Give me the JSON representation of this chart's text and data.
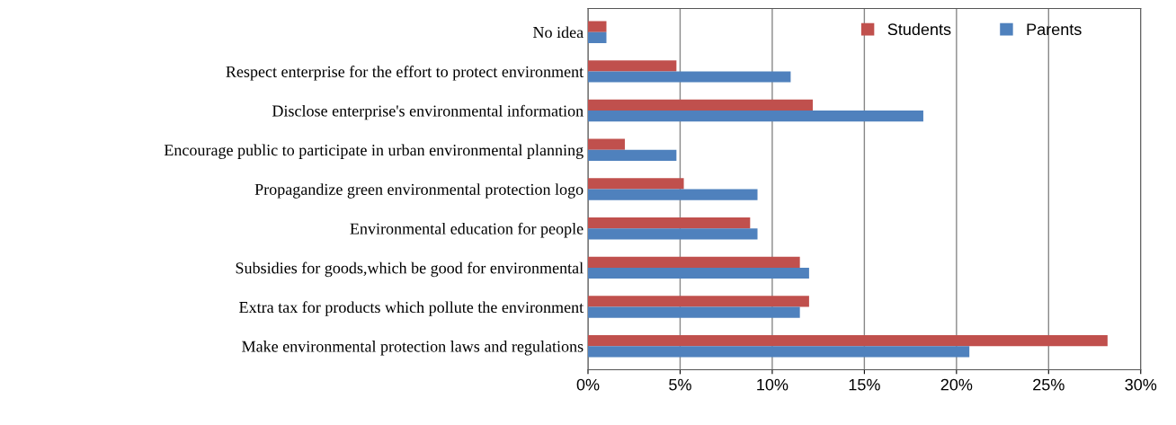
{
  "chart_data": {
    "type": "bar",
    "orientation": "horizontal",
    "categories": [
      "No idea",
      "Respect enterprise for the effort to protect environment",
      "Disclose enterprise's environmental information",
      "Encourage public to participate in urban environmental planning",
      "Propagandize green environmental protection logo",
      "Environmental education for people",
      "Subsidies for goods,which be good for environmental",
      "Extra tax for products which pollute the environment",
      "Make environmental protection laws and regulations"
    ],
    "series": [
      {
        "name": "Students",
        "color": "#c0504d",
        "values": [
          1.0,
          4.8,
          12.2,
          2.0,
          5.2,
          8.8,
          11.5,
          12.0,
          28.2
        ]
      },
      {
        "name": "Parents",
        "color": "#4f81bd",
        "values": [
          1.0,
          11.0,
          18.2,
          4.8,
          9.2,
          9.2,
          12.0,
          11.5,
          20.7
        ]
      }
    ],
    "xlim": [
      0,
      30
    ],
    "xticks": [
      {
        "value": 0,
        "label": "0%"
      },
      {
        "value": 5,
        "label": "5%"
      },
      {
        "value": 10,
        "label": "10%"
      },
      {
        "value": 15,
        "label": "15%"
      },
      {
        "value": 20,
        "label": "20%"
      },
      {
        "value": 25,
        "label": "25%"
      },
      {
        "value": 30,
        "label": "30%"
      }
    ],
    "grid": "x",
    "legend": "top right"
  }
}
